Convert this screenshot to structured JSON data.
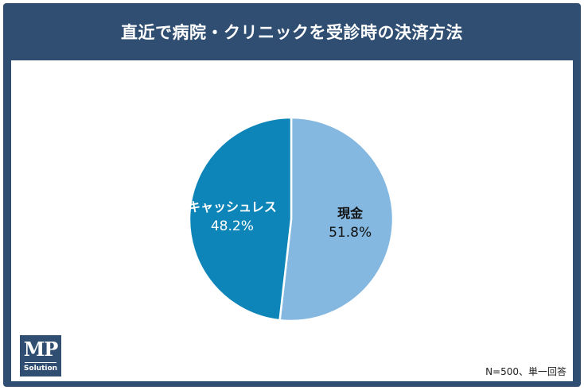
{
  "title": "直近で病院・クリニックを受診時の決済方法",
  "chart_data": {
    "type": "pie",
    "slices": [
      {
        "label": "現金",
        "value": 51.8,
        "value_label": "51.8%",
        "color": "#85b8e0",
        "text_color": "#111111"
      },
      {
        "label": "キャッシュレス",
        "value": 48.2,
        "value_label": "48.2%",
        "color": "#0e85b8",
        "text_color": "#ffffff"
      }
    ],
    "start": "12 o'clock",
    "direction": "clockwise"
  },
  "note": "N=500、単一回答",
  "logo": {
    "mark": "MP",
    "sub": "Solution"
  }
}
